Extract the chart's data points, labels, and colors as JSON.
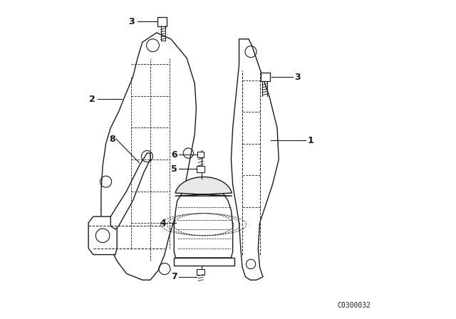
{
  "background_color": "#ffffff",
  "line_color": "#1a1a1a",
  "figure_code": "C0300032",
  "fig_width": 6.4,
  "fig_height": 4.48,
  "dpi": 100
}
